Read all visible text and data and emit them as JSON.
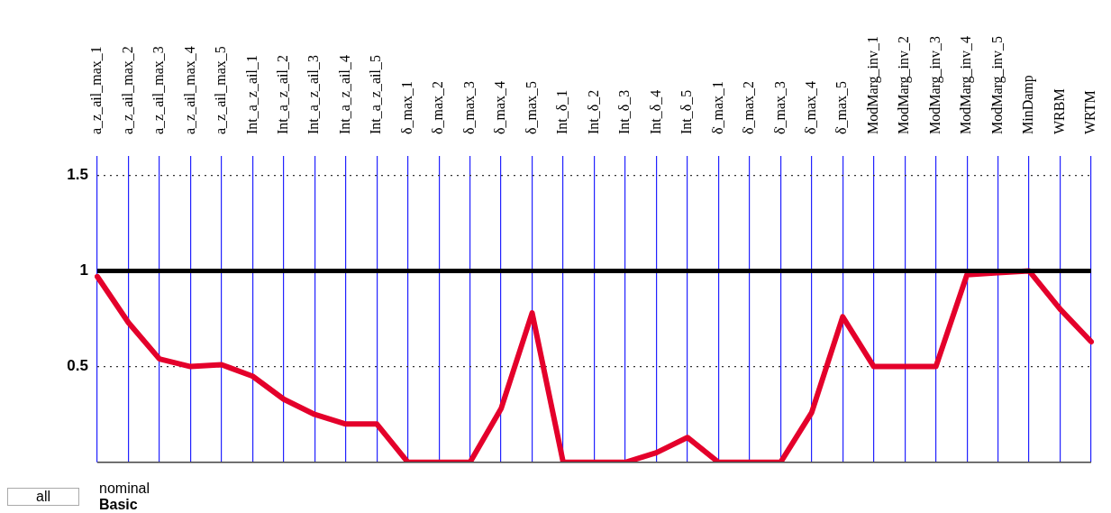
{
  "chart_data": {
    "type": "line",
    "categories": [
      "a_z_ail_max_1",
      "a_z_ail_max_2",
      "a_z_ail_max_3",
      "a_z_ail_max_4",
      "a_z_ail_max_5",
      "Int_a_z_ail_1",
      "Int_a_z_ail_2",
      "Int_a_z_ail_3",
      "Int_a_z_ail_4",
      "Int_a_z_ail_5",
      "δ_max_1",
      "δ_max_2",
      "δ_max_3",
      "δ_max_4",
      "δ_max_5",
      "Int_δ_1",
      "Int_δ_2",
      "Int_δ_3",
      "Int_δ_4",
      "Int_δ_5",
      "δ̇_max_1",
      "δ̇_max_2",
      "δ̇_max_3",
      "δ̇_max_4",
      "δ̇_max_5",
      "ModMarg_inv_1",
      "ModMarg_inv_2",
      "ModMarg_inv_3",
      "ModMarg_inv_4",
      "ModMarg_inv_5",
      "MinDamp",
      "WRBM",
      "WRTM"
    ],
    "series": [
      {
        "color": "#e4002b",
        "values": [
          0.97,
          0.73,
          0.54,
          0.5,
          0.51,
          0.45,
          0.33,
          0.25,
          0.2,
          0.2,
          0,
          0,
          0,
          0.28,
          0.78,
          0,
          0,
          0,
          0.05,
          0.13,
          0,
          0,
          0,
          0.26,
          0.76,
          0.5,
          0.5,
          0.5,
          0.98,
          0.99,
          1.0,
          0.8,
          0.63
        ]
      }
    ],
    "ylim": [
      0,
      1.6
    ],
    "yticks": [
      0.5,
      1,
      1.5
    ],
    "ref_lines": [
      {
        "axis": "y",
        "value": 1,
        "color": "#000000"
      }
    ],
    "grid": true,
    "legend": false,
    "marker": "none",
    "line_style": "solid",
    "annotations": [
      "nominal",
      "Basic",
      "all"
    ]
  }
}
